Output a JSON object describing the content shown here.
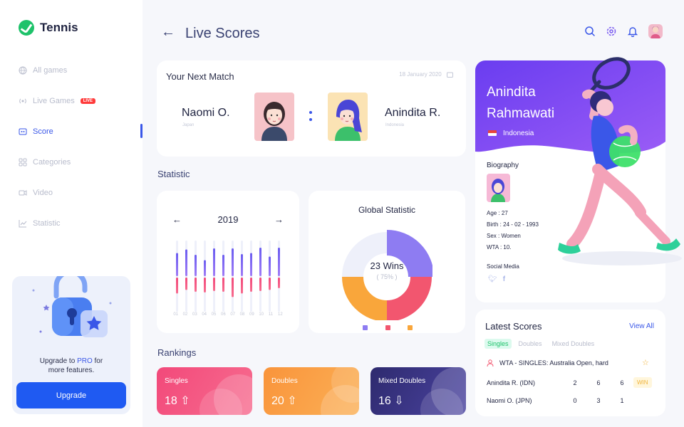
{
  "app": {
    "name": "Tennis"
  },
  "sidebar": {
    "items": [
      {
        "label": "All games",
        "icon": "globe-icon",
        "active": false
      },
      {
        "label": "Live Games",
        "icon": "broadcast-icon",
        "active": false,
        "badge": "LIVE"
      },
      {
        "label": "Score",
        "icon": "scoreboard-icon",
        "active": true
      },
      {
        "label": "Categories",
        "icon": "grid-icon",
        "active": false
      },
      {
        "label": "Video",
        "icon": "video-icon",
        "active": false
      },
      {
        "label": "Statistic",
        "icon": "chart-icon",
        "active": false
      }
    ],
    "upgrade": {
      "text_before": "Upgrade to ",
      "text_pro": "PRO",
      "text_after": " for",
      "text_line2": "more features.",
      "button": "Upgrade"
    }
  },
  "header": {
    "title": "Live Scores",
    "icons": [
      "search-icon",
      "gear-icon",
      "bell-icon",
      "avatar"
    ]
  },
  "next_match": {
    "title": "Your Next Match",
    "date": "18 January 2020",
    "player1": {
      "name": "Naomi O.",
      "country": "Japan"
    },
    "player2": {
      "name": "Anindita R.",
      "country": "Indonesia"
    }
  },
  "statistic": {
    "title": "Statistic",
    "year": "2019",
    "months": [
      "01",
      "02",
      "03",
      "04",
      "05",
      "06",
      "07",
      "08",
      "09",
      "10",
      "11",
      "12"
    ],
    "bars_top": [
      0.65,
      0.75,
      0.6,
      0.45,
      0.78,
      0.6,
      0.78,
      0.62,
      0.65,
      0.8,
      0.55,
      0.8
    ],
    "bars_bottom": [
      0.45,
      0.35,
      0.4,
      0.42,
      0.38,
      0.4,
      0.55,
      0.45,
      0.4,
      0.38,
      0.35,
      0.3
    ]
  },
  "global_statistic": {
    "title": "Global Statistic",
    "wins": "23 Wins",
    "percent": "( 75% )",
    "chart_data": {
      "type": "pie",
      "series": [
        {
          "value": 25,
          "color": "#8e7cf2"
        },
        {
          "value": 25,
          "color": "#f2566f"
        },
        {
          "value": 25,
          "color": "#f9a63b"
        },
        {
          "value": 25,
          "color": "#eef0fa"
        }
      ]
    },
    "legend_colors": [
      "#8e7cf2",
      "#f2566f",
      "#f9a63b"
    ]
  },
  "rankings": {
    "title": "Rankings",
    "items": [
      {
        "label": "Singles",
        "value": "18",
        "trend": "up",
        "color": "#f2497a"
      },
      {
        "label": "Doubles",
        "value": "20",
        "trend": "up",
        "color": "#f9943b"
      },
      {
        "label": "Mixed Doubles",
        "value": "16",
        "trend": "down",
        "color": "#3c3580"
      }
    ]
  },
  "profile": {
    "first_name": "Anindita",
    "last_name": "Rahmawati",
    "country": "Indonesia",
    "bio_title": "Biography",
    "age": "Age : 27",
    "birth": "Birth : 24 - 02 - 1993",
    "sex": "Sex : Women",
    "wta": "WTA : 10.",
    "social_title": "Social Media"
  },
  "latest_scores": {
    "title": "Latest Scores",
    "view_all": "View All",
    "tabs": [
      "Singles",
      "Doubles",
      "Mixed Doubles"
    ],
    "event": "WTA - SINGLES: Australia Open, hard",
    "rows": [
      {
        "name": "Anindita R. (IDN)",
        "s1": "2",
        "s2": "6",
        "s3": "6",
        "badge": "WIN"
      },
      {
        "name": "Naomi O. (JPN)",
        "s1": "0",
        "s2": "3",
        "s3": "1"
      }
    ]
  }
}
